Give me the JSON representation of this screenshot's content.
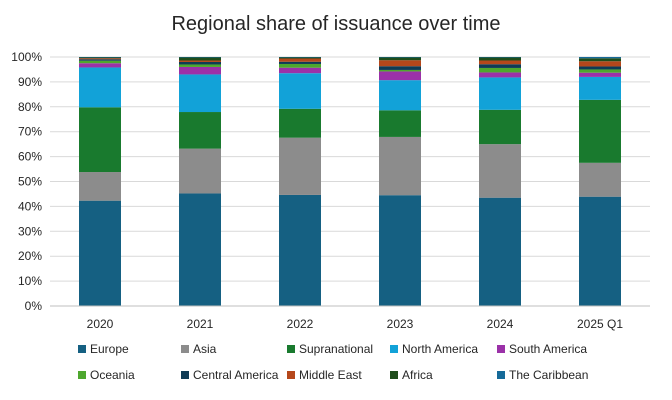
{
  "chart_data": {
    "type": "bar",
    "stacked": true,
    "title": "Regional share of issuance over time",
    "categories": [
      "2020",
      "2021",
      "2022",
      "2023",
      "2024",
      "2025 Q1"
    ],
    "ylim": [
      0,
      100
    ],
    "y_ticks": [
      "0%",
      "10%",
      "20%",
      "30%",
      "40%",
      "50%",
      "60%",
      "70%",
      "80%",
      "90%",
      "100%"
    ],
    "grid": true,
    "legend_position": "bottom",
    "series": [
      {
        "name": "Europe",
        "color": "#156082",
        "values": [
          42.3,
          45.2,
          44.6,
          44.5,
          43.5,
          43.9
        ]
      },
      {
        "name": "Asia",
        "color": "#8C8C8C",
        "values": [
          11.5,
          18.0,
          23.0,
          23.4,
          21.5,
          13.6
        ]
      },
      {
        "name": "Supranational",
        "color": "#197A2E",
        "values": [
          26.0,
          14.7,
          11.6,
          10.7,
          13.8,
          25.3
        ]
      },
      {
        "name": "North America",
        "color": "#12A2D8",
        "values": [
          16.0,
          15.1,
          14.3,
          12.1,
          13.0,
          9.2
        ]
      },
      {
        "name": "South America",
        "color": "#9B31A8",
        "values": [
          1.7,
          3.0,
          2.2,
          3.5,
          2.0,
          1.7
        ]
      },
      {
        "name": "Oceania",
        "color": "#4EA72E",
        "values": [
          1.0,
          1.0,
          1.5,
          0.6,
          1.8,
          1.3
        ]
      },
      {
        "name": "Central America",
        "color": "#0F3B55",
        "values": [
          0.6,
          1.0,
          0.9,
          1.5,
          1.5,
          1.2
        ]
      },
      {
        "name": "Middle East",
        "color": "#B5471B",
        "values": [
          0.4,
          0.6,
          1.3,
          2.4,
          1.5,
          2.1
        ]
      },
      {
        "name": "Africa",
        "color": "#1F4D1B",
        "values": [
          0.3,
          1.2,
          0.4,
          1.1,
          1.2,
          1.2
        ]
      },
      {
        "name": "The Caribbean",
        "color": "#166A99",
        "values": [
          0.2,
          0.2,
          0.2,
          0.2,
          0.2,
          0.5
        ]
      }
    ]
  }
}
